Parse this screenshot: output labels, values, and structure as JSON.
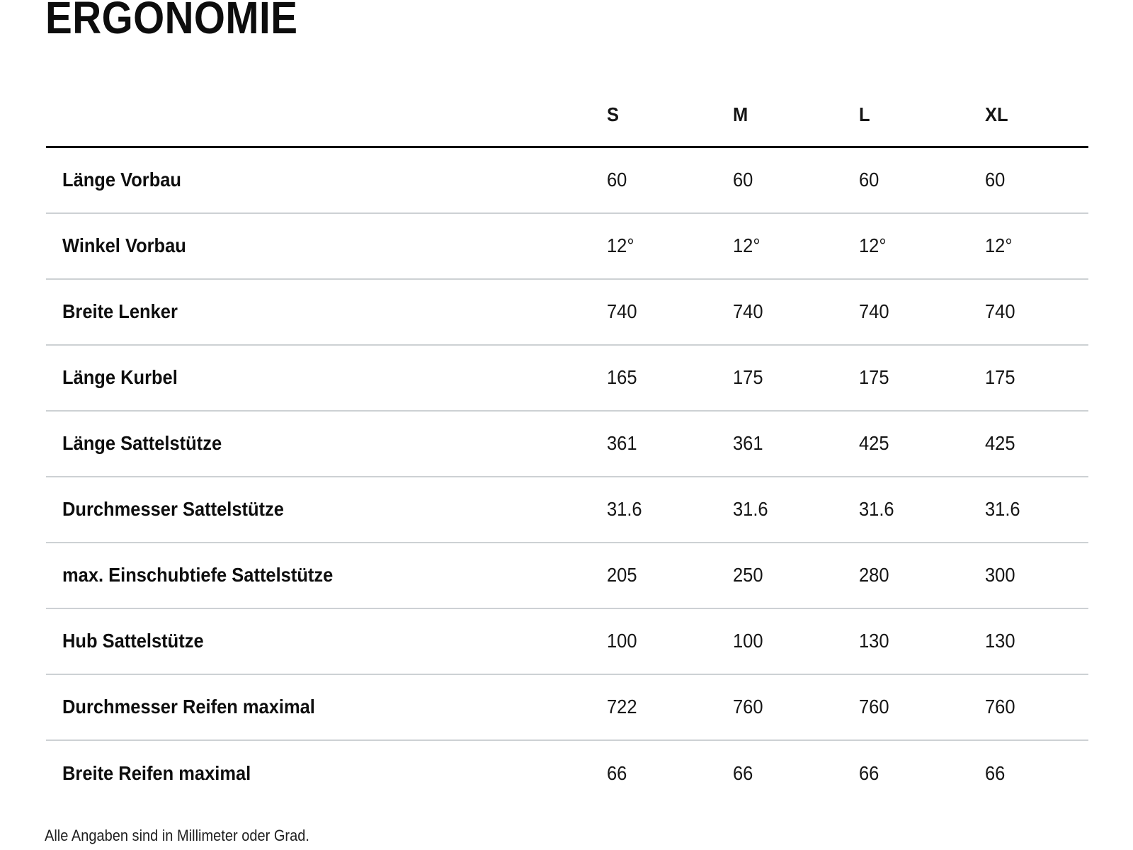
{
  "page": {
    "title": "ERGONOMIE",
    "footnote": "Alle Angaben sind in Millimeter oder Grad."
  },
  "colors": {
    "background": "#ffffff",
    "text": "#131313",
    "header_rule": "#000000",
    "row_divider": "#cdd1d4"
  },
  "chart_data": {
    "type": "table",
    "title": "ERGONOMIE",
    "columns": [
      "S",
      "M",
      "L",
      "XL"
    ],
    "rows": [
      {
        "label": "Länge Vorbau",
        "values": [
          "60",
          "60",
          "60",
          "60"
        ]
      },
      {
        "label": "Winkel Vorbau",
        "values": [
          "12°",
          "12°",
          "12°",
          "12°"
        ]
      },
      {
        "label": "Breite Lenker",
        "values": [
          "740",
          "740",
          "740",
          "740"
        ]
      },
      {
        "label": "Länge Kurbel",
        "values": [
          "165",
          "175",
          "175",
          "175"
        ]
      },
      {
        "label": "Länge Sattelstütze",
        "values": [
          "361",
          "361",
          "425",
          "425"
        ]
      },
      {
        "label": "Durchmesser Sattelstütze",
        "values": [
          "31.6",
          "31.6",
          "31.6",
          "31.6"
        ]
      },
      {
        "label": "max. Einschubtiefe Sattelstütze",
        "values": [
          "205",
          "250",
          "280",
          "300"
        ]
      },
      {
        "label": "Hub Sattelstütze",
        "values": [
          "100",
          "100",
          "130",
          "130"
        ]
      },
      {
        "label": "Durchmesser Reifen maximal",
        "values": [
          "722",
          "760",
          "760",
          "760"
        ]
      },
      {
        "label": "Breite Reifen maximal",
        "values": [
          "66",
          "66",
          "66",
          "66"
        ]
      }
    ],
    "footnote": "Alle Angaben sind in Millimeter oder Grad.",
    "layout": {
      "grid": "horizontal-dividers-only",
      "header_position": "top",
      "value_alignment": "left"
    }
  }
}
